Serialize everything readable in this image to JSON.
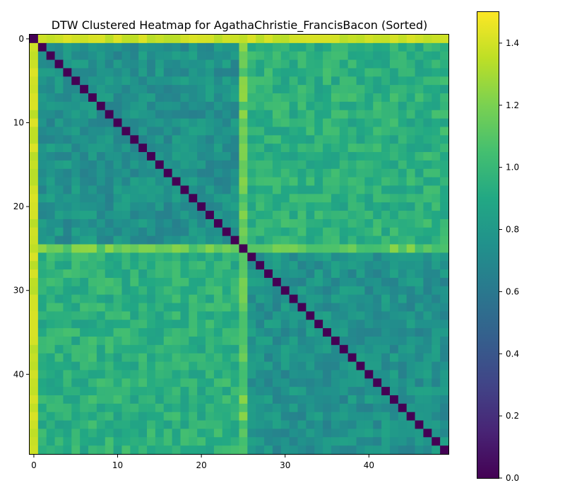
{
  "chart_data": {
    "type": "heatmap",
    "title": "DTW Clustered Heatmap for AgathaChristie_FrancisBacon (Sorted)",
    "n": 50,
    "x_ticks": [
      0,
      10,
      20,
      30,
      40
    ],
    "y_ticks": [
      0,
      10,
      20,
      30,
      40
    ],
    "colormap": "viridis",
    "vmin": 0.0,
    "vmax": 1.5,
    "colorbar_ticks": [
      "0.0",
      "0.2",
      "0.4",
      "0.6",
      "0.8",
      "1.0",
      "1.2",
      "1.4"
    ],
    "diagonal_value": 0.0,
    "typical_offdiagonal_value": 0.85,
    "row_profile": [
      1.45,
      1.0,
      0.85,
      0.85,
      0.85,
      0.85,
      0.85,
      0.85,
      0.85,
      0.85,
      0.85,
      0.85,
      0.85,
      0.85,
      0.85,
      0.85,
      0.85,
      0.85,
      0.85,
      0.85,
      0.85,
      0.85,
      0.85,
      0.85,
      1.2,
      1.3,
      1.1,
      1.15,
      0.85,
      0.85,
      1.0,
      1.15,
      0.85,
      0.85,
      0.85,
      0.85,
      0.85,
      0.85,
      0.85,
      0.85,
      0.85,
      0.85,
      0.85,
      0.85,
      0.85,
      0.85,
      0.85,
      0.85,
      0.85,
      0.85
    ],
    "notes_block": "Rows/cols 0-24 and 26-49 form two clusters; within-cluster values about 0.65-0.85, cross-cluster about 0.9-1.1; row/col 0 and row/col 25 are high (about 1.2-1.5)."
  }
}
